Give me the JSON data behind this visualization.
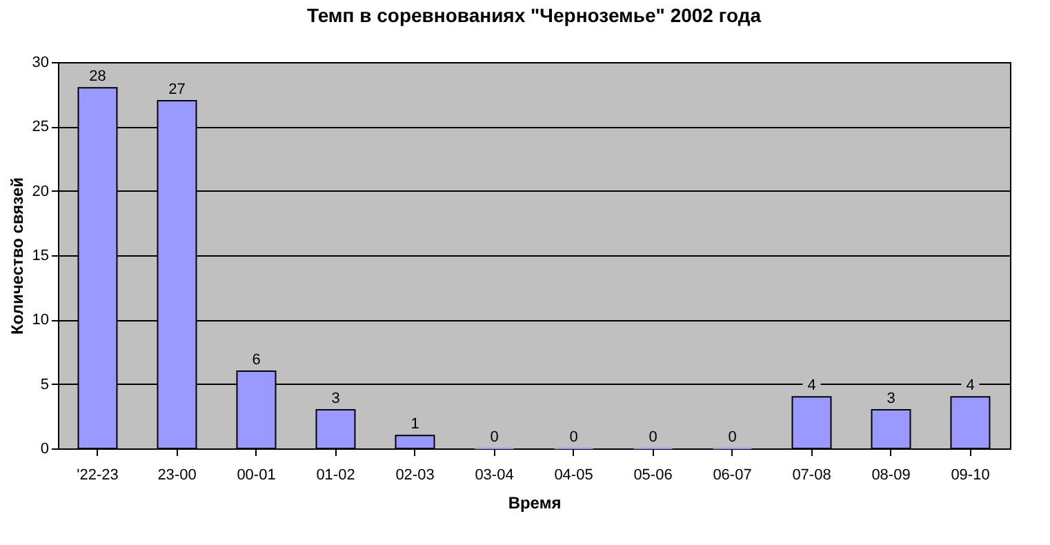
{
  "chart_data": {
    "type": "bar",
    "title": "Темп в соревнованиях \"Черноземье\" 2002 года",
    "xlabel": "Время",
    "ylabel": "Количество связей",
    "categories": [
      "'22-23",
      "23-00",
      "00-01",
      "01-02",
      "02-03",
      "03-04",
      "04-05",
      "05-06",
      "06-07",
      "07-08",
      "08-09",
      "09-10"
    ],
    "values": [
      28,
      27,
      6,
      3,
      1,
      0,
      0,
      0,
      0,
      4,
      3,
      4
    ],
    "color": "#9999ff",
    "ylim": [
      0,
      30
    ],
    "yticks": [
      0,
      5,
      10,
      15,
      20,
      25,
      30
    ],
    "grid": "y",
    "data_labels": true
  }
}
